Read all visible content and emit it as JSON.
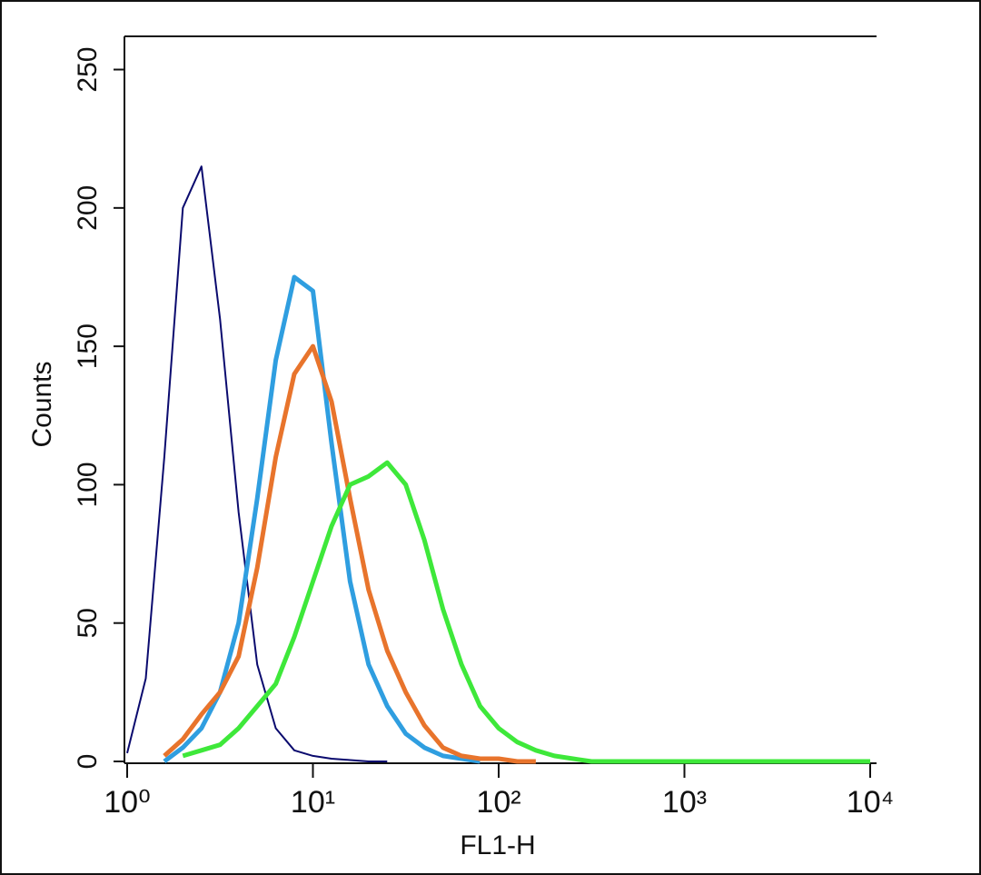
{
  "chart_data": {
    "type": "line",
    "xlabel": "FL1-H",
    "ylabel": "Counts",
    "log_x": true,
    "x": [
      1,
      1.259,
      1.585,
      1.995,
      2.512,
      3.162,
      3.981,
      5.012,
      6.31,
      7.943,
      10,
      12.59,
      15.85,
      19.95,
      25.12,
      31.62,
      39.81,
      50.12,
      63.1,
      79.43,
      100,
      125.9,
      158.5,
      199.5,
      251.2,
      316.2,
      398.1,
      501.2,
      631,
      794.3,
      1000,
      1259,
      1585,
      1995,
      2512,
      3162,
      3981,
      5012,
      6310,
      7943,
      10000
    ],
    "series": [
      {
        "color": "#0a0a6e",
        "width": 2,
        "values": [
          3,
          30,
          110,
          200,
          215,
          160,
          90,
          35,
          12,
          4,
          2,
          1,
          0.5,
          0,
          0,
          null,
          null,
          null,
          null,
          null,
          null,
          null,
          null,
          null,
          null,
          null,
          null,
          null,
          null,
          null,
          null,
          null,
          null,
          null,
          null,
          null,
          null,
          null,
          null,
          null,
          null
        ]
      },
      {
        "color": "#2f9ee0",
        "width": 5,
        "values": [
          null,
          null,
          0,
          5,
          12,
          25,
          50,
          95,
          145,
          175,
          170,
          115,
          65,
          35,
          20,
          10,
          5,
          2,
          1,
          0,
          null,
          null,
          null,
          null,
          null,
          null,
          null,
          null,
          null,
          null,
          null,
          null,
          null,
          null,
          null,
          null,
          null,
          null,
          null,
          null,
          null
        ]
      },
      {
        "color": "#e8742c",
        "width": 5,
        "values": [
          null,
          null,
          2,
          8,
          17,
          25,
          38,
          70,
          110,
          140,
          150,
          130,
          95,
          62,
          40,
          25,
          13,
          5,
          2,
          1,
          1,
          0,
          0,
          null,
          null,
          null,
          null,
          null,
          null,
          null,
          null,
          null,
          null,
          null,
          null,
          null,
          null,
          null,
          null,
          null,
          null
        ]
      },
      {
        "color": "#3ee83a",
        "width": 5,
        "values": [
          null,
          null,
          null,
          2,
          4,
          6,
          12,
          20,
          28,
          45,
          65,
          85,
          100,
          103,
          108,
          100,
          80,
          55,
          35,
          20,
          12,
          7,
          4,
          2,
          1,
          0,
          0,
          0,
          0,
          0,
          0,
          0,
          0,
          0,
          0,
          0,
          0,
          0,
          0,
          0,
          0
        ]
      }
    ],
    "xlim": [
      1,
      10000
    ],
    "xticks": [
      {
        "value": 1,
        "label": "10⁰"
      },
      {
        "value": 10,
        "label": "10¹"
      },
      {
        "value": 100,
        "label": "10²"
      },
      {
        "value": 1000,
        "label": "10³"
      },
      {
        "value": 10000,
        "label": "10⁴"
      }
    ],
    "ylim": [
      0,
      262
    ],
    "yticks": [
      0,
      50,
      100,
      150,
      200,
      250
    ]
  }
}
